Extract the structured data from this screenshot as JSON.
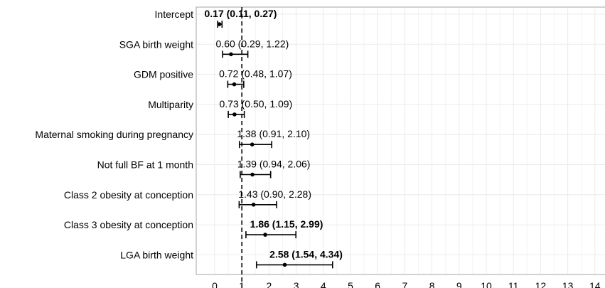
{
  "chart_data": {
    "type": "forest",
    "title": "",
    "xlabel": "",
    "ylabel": "",
    "xlim": [
      0,
      14
    ],
    "x_ticks": [
      0,
      1,
      2,
      3,
      4,
      5,
      6,
      7,
      8,
      9,
      10,
      11,
      12,
      13,
      14
    ],
    "x_tick_labels": [
      "0",
      "1",
      "2",
      "3",
      "4",
      "5",
      "6",
      "7",
      "8",
      "9",
      "10",
      "11",
      "12",
      "13",
      "14"
    ],
    "reference_line": 1,
    "grid": true,
    "rows": [
      {
        "label": "Intercept",
        "estimate": 0.17,
        "lower": 0.11,
        "upper": 0.27,
        "text": "0.17 (0.11, 0.27)",
        "bold": true
      },
      {
        "label": "SGA birth weight",
        "estimate": 0.6,
        "lower": 0.29,
        "upper": 1.22,
        "text": "0.60 (0.29, 1.22)",
        "bold": false
      },
      {
        "label": "GDM positive",
        "estimate": 0.72,
        "lower": 0.48,
        "upper": 1.07,
        "text": "0.72 (0.48, 1.07)",
        "bold": false
      },
      {
        "label": "Multiparity",
        "estimate": 0.73,
        "lower": 0.5,
        "upper": 1.09,
        "text": "0.73 (0.50, 1.09)",
        "bold": false
      },
      {
        "label": "Maternal smoking during pregnancy",
        "estimate": 1.38,
        "lower": 0.91,
        "upper": 2.1,
        "text": "1.38 (0.91, 2.10)",
        "bold": false
      },
      {
        "label": "Not full BF at 1 month",
        "estimate": 1.39,
        "lower": 0.94,
        "upper": 2.06,
        "text": "1.39 (0.94, 2.06)",
        "bold": false
      },
      {
        "label": "Class 2 obesity at conception",
        "estimate": 1.43,
        "lower": 0.9,
        "upper": 2.28,
        "text": "1.43 (0.90, 2.28)",
        "bold": false
      },
      {
        "label": "Class 3 obesity at conception",
        "estimate": 1.86,
        "lower": 1.15,
        "upper": 2.99,
        "text": "1.86 (1.15, 2.99)",
        "bold": true
      },
      {
        "label": "LGA birth weight",
        "estimate": 2.58,
        "lower": 1.54,
        "upper": 4.34,
        "text": "2.58 (1.54, 4.34)",
        "bold": true
      }
    ],
    "colors": {
      "mark": "#000000",
      "grid": "#ebebeb",
      "frame": "#a6a6a6",
      "text": "#000000",
      "reference_line": "#000000"
    }
  }
}
